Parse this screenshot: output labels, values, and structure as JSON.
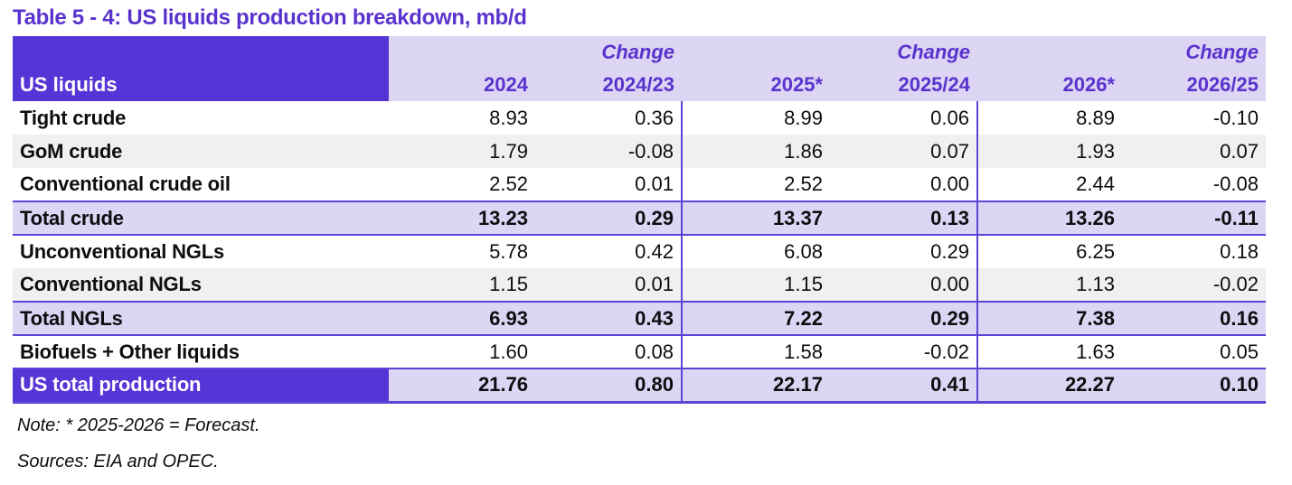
{
  "title": "Table 5 - 4: US liquids production breakdown, mb/d",
  "table": {
    "row_header": "US liquids",
    "change_label": "Change",
    "columns": [
      "2024",
      "2024/23",
      "2025*",
      "2025/24",
      "2026*",
      "2026/25"
    ],
    "rows": [
      {
        "label": "Tight crude",
        "values": [
          "8.93",
          "0.36",
          "8.99",
          "0.06",
          "8.89",
          "-0.10"
        ],
        "style": "normal"
      },
      {
        "label": "GoM crude",
        "values": [
          "1.79",
          "-0.08",
          "1.86",
          "0.07",
          "1.93",
          "0.07"
        ],
        "style": "alt"
      },
      {
        "label": "Conventional crude oil",
        "values": [
          "2.52",
          "0.01",
          "2.52",
          "0.00",
          "2.44",
          "-0.08"
        ],
        "style": "normal"
      },
      {
        "label": "Total crude",
        "values": [
          "13.23",
          "0.29",
          "13.37",
          "0.13",
          "13.26",
          "-0.11"
        ],
        "style": "total"
      },
      {
        "label": "Unconventional NGLs",
        "values": [
          "5.78",
          "0.42",
          "6.08",
          "0.29",
          "6.25",
          "0.18"
        ],
        "style": "normal"
      },
      {
        "label": "Conventional NGLs",
        "values": [
          "1.15",
          "0.01",
          "1.15",
          "0.00",
          "1.13",
          "-0.02"
        ],
        "style": "alt"
      },
      {
        "label": "Total NGLs",
        "values": [
          "6.93",
          "0.43",
          "7.22",
          "0.29",
          "7.38",
          "0.16"
        ],
        "style": "total"
      },
      {
        "label": "Biofuels + Other liquids",
        "values": [
          "1.60",
          "0.08",
          "1.58",
          "-0.02",
          "1.63",
          "0.05"
        ],
        "style": "normal"
      },
      {
        "label": "US total production",
        "values": [
          "21.76",
          "0.80",
          "22.17",
          "0.41",
          "22.27",
          "0.10"
        ],
        "style": "grand"
      }
    ]
  },
  "notes": {
    "note": "Note: * 2025-2026 = Forecast.",
    "sources": "Sources: EIA and OPEC."
  },
  "colors": {
    "header_purple": "#5535D6",
    "lavender": "#DCD5F3",
    "alt_row_gray": "#F0F0F0",
    "border_purple": "#5B45D6",
    "title_purple": "#5A33CE"
  }
}
